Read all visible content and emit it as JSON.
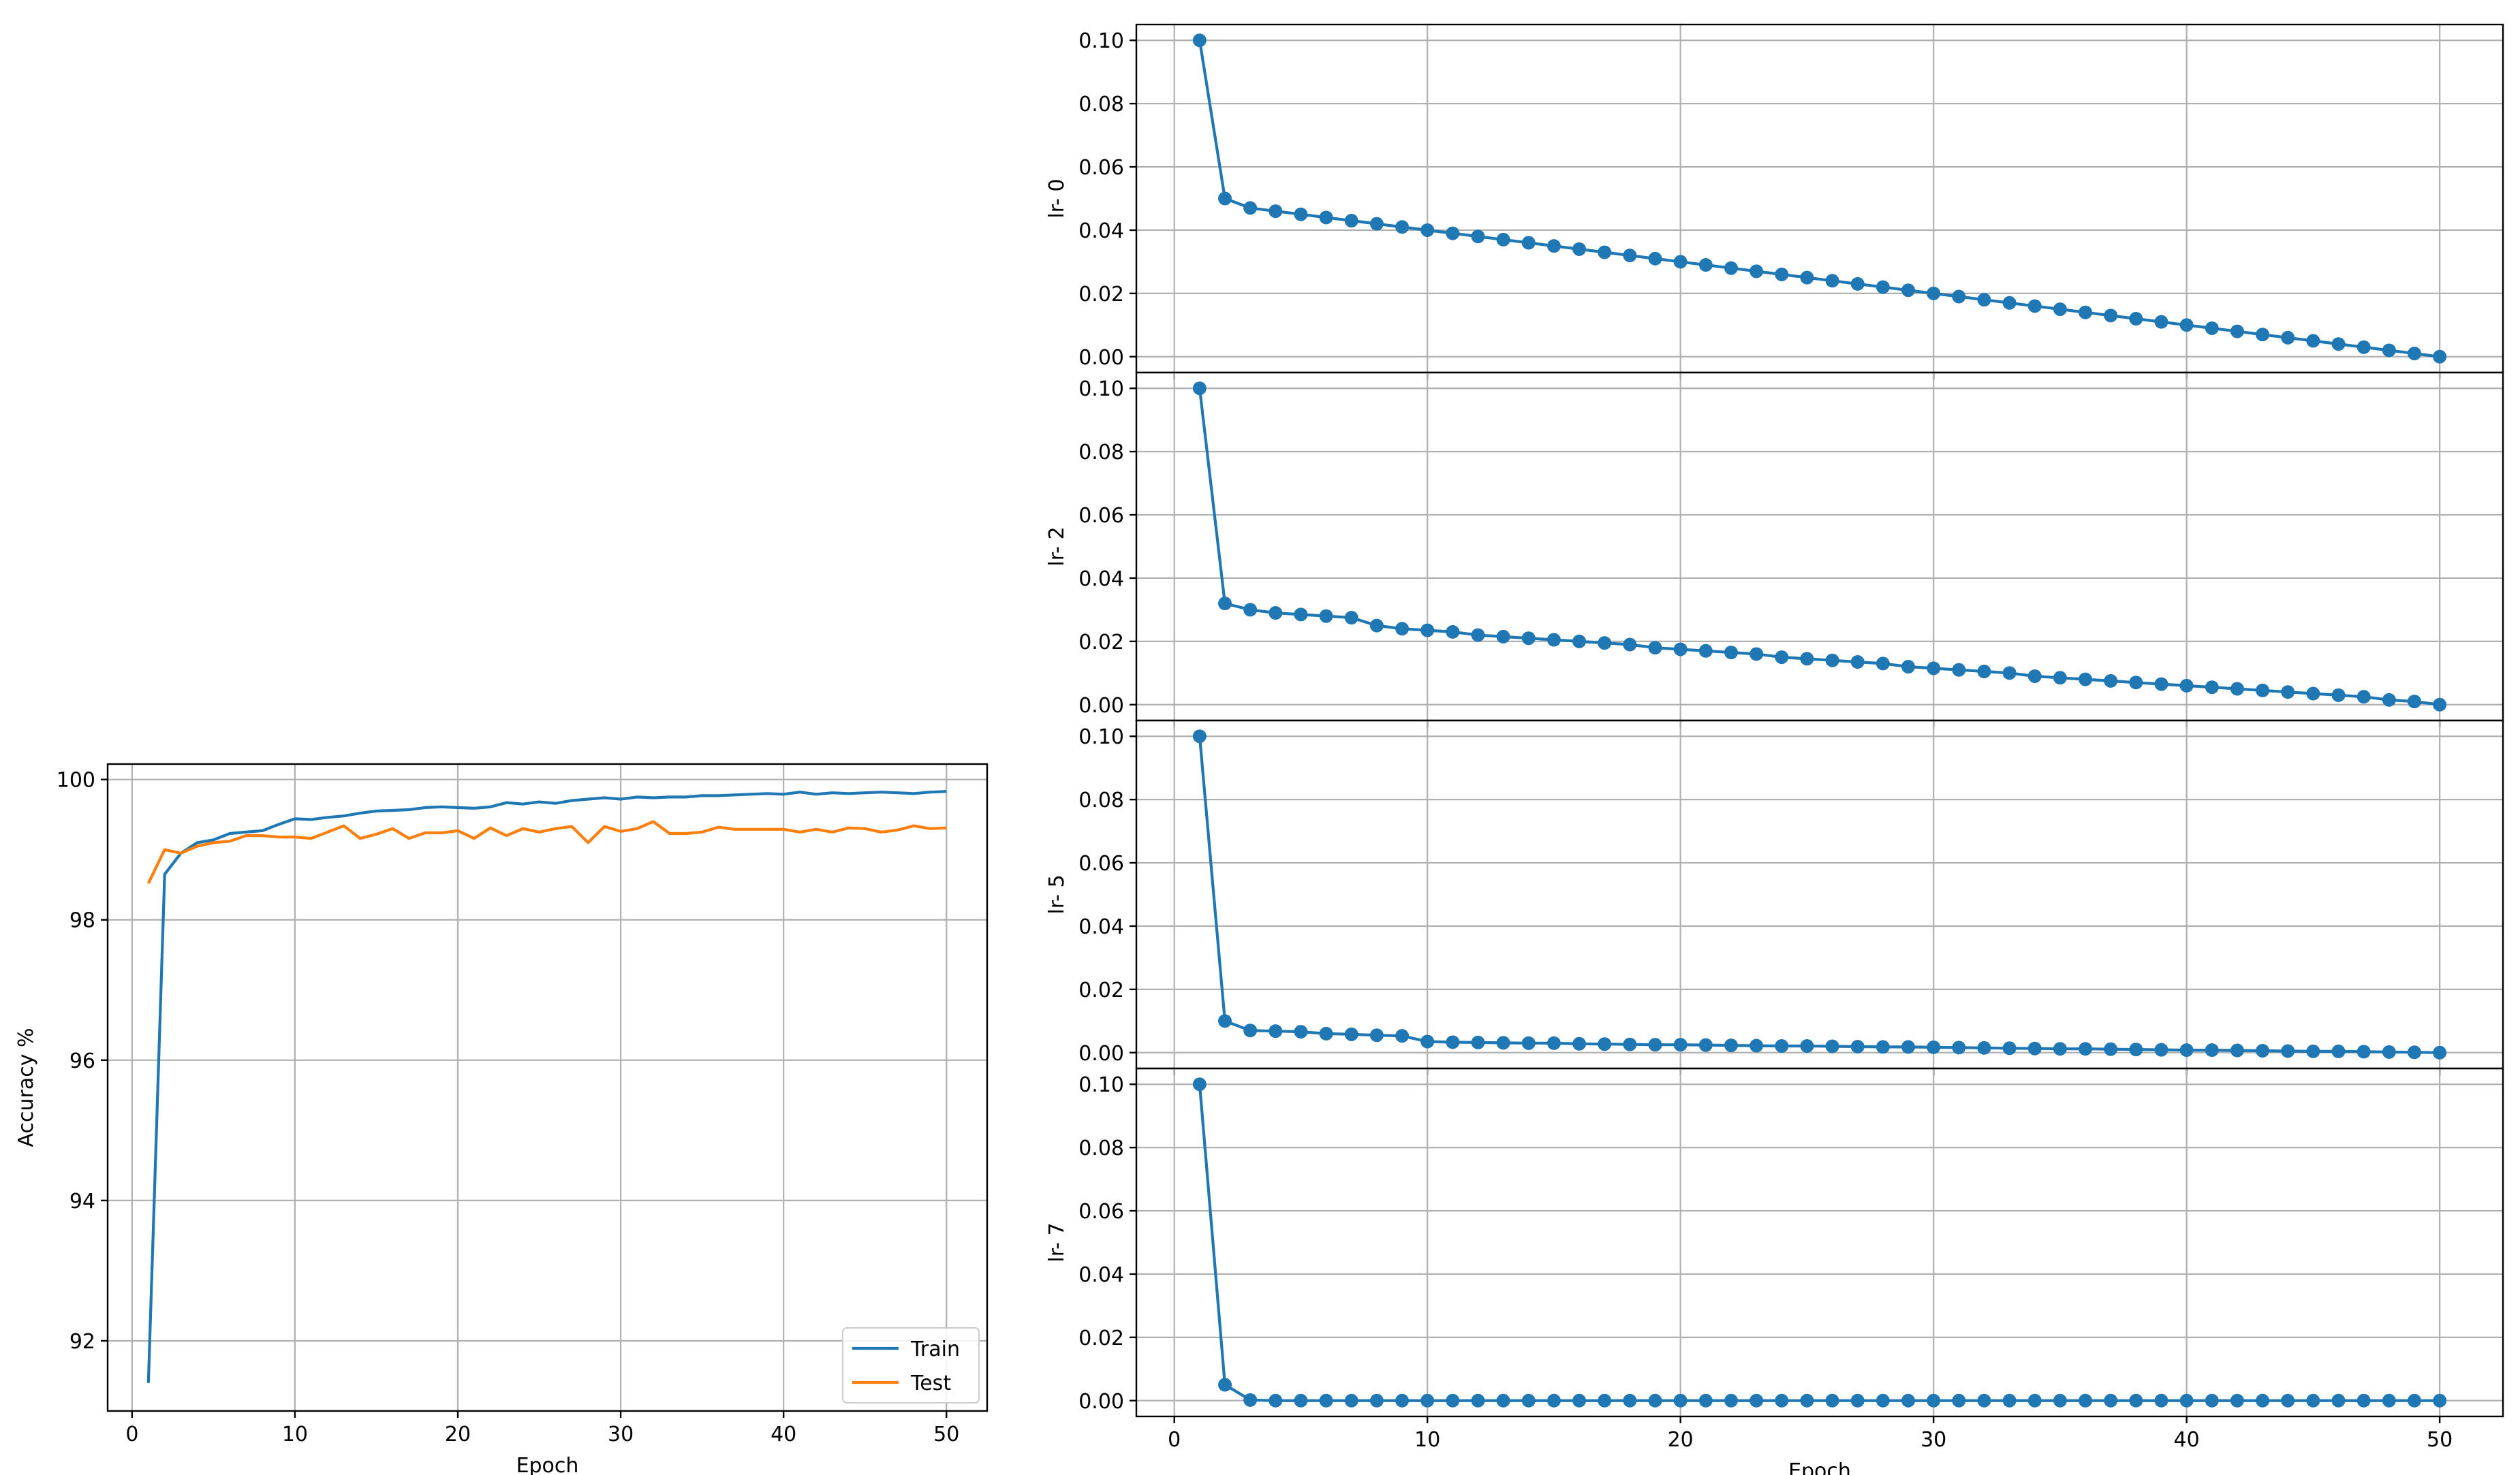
{
  "chart_data": [
    {
      "id": "accuracy",
      "type": "line",
      "title": "",
      "xlabel": "Epoch",
      "ylabel": "Accuracy %",
      "xlim": [
        -1.5,
        52.5
      ],
      "ylim": [
        91.0,
        100.22
      ],
      "xticks": [
        0,
        10,
        20,
        30,
        40,
        50
      ],
      "yticks": [
        92,
        94,
        96,
        98,
        100
      ],
      "grid": true,
      "legend": "lower-right",
      "series": [
        {
          "name": "Train",
          "color": "#1f77b4",
          "x": [
            1,
            2,
            3,
            4,
            5,
            6,
            7,
            8,
            9,
            10,
            11,
            12,
            13,
            14,
            15,
            16,
            17,
            18,
            19,
            20,
            21,
            22,
            23,
            24,
            25,
            26,
            27,
            28,
            29,
            30,
            31,
            32,
            33,
            34,
            35,
            36,
            37,
            38,
            39,
            40,
            41,
            42,
            43,
            44,
            45,
            46,
            47,
            48,
            49,
            50
          ],
          "values": [
            91.4,
            98.65,
            98.95,
            99.1,
            99.14,
            99.23,
            99.25,
            99.27,
            99.36,
            99.44,
            99.43,
            99.46,
            99.48,
            99.52,
            99.55,
            99.56,
            99.57,
            99.6,
            99.61,
            99.6,
            99.59,
            99.61,
            99.67,
            99.65,
            99.68,
            99.66,
            99.7,
            99.72,
            99.74,
            99.72,
            99.75,
            99.74,
            99.75,
            99.75,
            99.77,
            99.77,
            99.78,
            99.79,
            99.8,
            99.79,
            99.82,
            99.79,
            99.81,
            99.8,
            99.81,
            99.82,
            99.81,
            99.8,
            99.82,
            99.83
          ]
        },
        {
          "name": "Test",
          "color": "#ff7f0e",
          "x": [
            1,
            2,
            3,
            4,
            5,
            6,
            7,
            8,
            9,
            10,
            11,
            12,
            13,
            14,
            15,
            16,
            17,
            18,
            19,
            20,
            21,
            22,
            23,
            24,
            25,
            26,
            27,
            28,
            29,
            30,
            31,
            32,
            33,
            34,
            35,
            36,
            37,
            38,
            39,
            40,
            41,
            42,
            43,
            44,
            45,
            46,
            47,
            48,
            49,
            50
          ],
          "values": [
            98.52,
            99.0,
            98.95,
            99.05,
            99.1,
            99.12,
            99.2,
            99.2,
            99.18,
            99.18,
            99.16,
            99.25,
            99.34,
            99.16,
            99.22,
            99.3,
            99.16,
            99.24,
            99.24,
            99.27,
            99.16,
            99.31,
            99.2,
            99.3,
            99.25,
            99.3,
            99.33,
            99.1,
            99.33,
            99.26,
            99.3,
            99.4,
            99.23,
            99.23,
            99.25,
            99.32,
            99.29,
            99.29,
            99.29,
            99.29,
            99.25,
            99.29,
            99.25,
            99.31,
            99.3,
            99.25,
            99.28,
            99.34,
            99.3,
            99.31
          ]
        }
      ]
    },
    {
      "id": "lr0",
      "type": "line",
      "xlabel": "",
      "ylabel": "lr- 0",
      "xlim": [
        -1.5,
        52.5
      ],
      "ylim": [
        -0.005,
        0.105
      ],
      "xticks": [
        0,
        10,
        20,
        30,
        40,
        50
      ],
      "yticks": [
        0.0,
        0.02,
        0.04,
        0.06,
        0.08,
        0.1
      ],
      "grid": true,
      "markers": true,
      "color": "#1f77b4",
      "x": [
        1,
        2,
        3,
        4,
        5,
        6,
        7,
        8,
        9,
        10,
        11,
        12,
        13,
        14,
        15,
        16,
        17,
        18,
        19,
        20,
        21,
        22,
        23,
        24,
        25,
        26,
        27,
        28,
        29,
        30,
        31,
        32,
        33,
        34,
        35,
        36,
        37,
        38,
        39,
        40,
        41,
        42,
        43,
        44,
        45,
        46,
        47,
        48,
        49,
        50
      ],
      "values": [
        0.1,
        0.05,
        0.047,
        0.046,
        0.045,
        0.044,
        0.043,
        0.042,
        0.041,
        0.04,
        0.039,
        0.038,
        0.037,
        0.036,
        0.035,
        0.034,
        0.033,
        0.032,
        0.031,
        0.03,
        0.029,
        0.028,
        0.027,
        0.026,
        0.025,
        0.024,
        0.023,
        0.022,
        0.021,
        0.02,
        0.019,
        0.018,
        0.017,
        0.016,
        0.015,
        0.014,
        0.013,
        0.012,
        0.011,
        0.01,
        0.009,
        0.008,
        0.007,
        0.006,
        0.005,
        0.004,
        0.003,
        0.002,
        0.001,
        0.0
      ]
    },
    {
      "id": "lr2",
      "type": "line",
      "xlabel": "",
      "ylabel": "lr- 2",
      "xlim": [
        -1.5,
        52.5
      ],
      "ylim": [
        -0.005,
        0.105
      ],
      "xticks": [
        0,
        10,
        20,
        30,
        40,
        50
      ],
      "yticks": [
        0.0,
        0.02,
        0.04,
        0.06,
        0.08,
        0.1
      ],
      "grid": true,
      "markers": true,
      "color": "#1f77b4",
      "x": [
        1,
        2,
        3,
        4,
        5,
        6,
        7,
        8,
        9,
        10,
        11,
        12,
        13,
        14,
        15,
        16,
        17,
        18,
        19,
        20,
        21,
        22,
        23,
        24,
        25,
        26,
        27,
        28,
        29,
        30,
        31,
        32,
        33,
        34,
        35,
        36,
        37,
        38,
        39,
        40,
        41,
        42,
        43,
        44,
        45,
        46,
        47,
        48,
        49,
        50
      ],
      "values": [
        0.1,
        0.032,
        0.03,
        0.029,
        0.0285,
        0.028,
        0.0275,
        0.025,
        0.024,
        0.0235,
        0.023,
        0.022,
        0.0215,
        0.021,
        0.0205,
        0.02,
        0.0195,
        0.019,
        0.018,
        0.0175,
        0.017,
        0.0165,
        0.016,
        0.015,
        0.0145,
        0.014,
        0.0135,
        0.013,
        0.012,
        0.0115,
        0.011,
        0.0105,
        0.01,
        0.009,
        0.0085,
        0.008,
        0.0075,
        0.007,
        0.0065,
        0.006,
        0.0055,
        0.005,
        0.0045,
        0.004,
        0.0035,
        0.003,
        0.0025,
        0.0015,
        0.001,
        0.0
      ]
    },
    {
      "id": "lr5",
      "type": "line",
      "xlabel": "",
      "ylabel": "lr- 5",
      "xlim": [
        -1.5,
        52.5
      ],
      "ylim": [
        -0.005,
        0.105
      ],
      "xticks": [
        0,
        10,
        20,
        30,
        40,
        50
      ],
      "yticks": [
        0.0,
        0.02,
        0.04,
        0.06,
        0.08,
        0.1
      ],
      "grid": true,
      "markers": true,
      "color": "#1f77b4",
      "x": [
        1,
        2,
        3,
        4,
        5,
        6,
        7,
        8,
        9,
        10,
        11,
        12,
        13,
        14,
        15,
        16,
        17,
        18,
        19,
        20,
        21,
        22,
        23,
        24,
        25,
        26,
        27,
        28,
        29,
        30,
        31,
        32,
        33,
        34,
        35,
        36,
        37,
        38,
        39,
        40,
        41,
        42,
        43,
        44,
        45,
        46,
        47,
        48,
        49,
        50
      ],
      "values": [
        0.1,
        0.01,
        0.007,
        0.0068,
        0.0066,
        0.006,
        0.0058,
        0.0055,
        0.0053,
        0.0035,
        0.0033,
        0.0032,
        0.0031,
        0.003,
        0.003,
        0.0028,
        0.0027,
        0.0026,
        0.0025,
        0.0025,
        0.0024,
        0.0023,
        0.0022,
        0.0021,
        0.0021,
        0.002,
        0.0019,
        0.0018,
        0.0018,
        0.0017,
        0.0016,
        0.0015,
        0.0014,
        0.0013,
        0.0012,
        0.0012,
        0.0011,
        0.001,
        0.0009,
        0.0008,
        0.0008,
        0.0007,
        0.0006,
        0.0005,
        0.0004,
        0.0004,
        0.0003,
        0.0002,
        0.0001,
        0.0
      ]
    },
    {
      "id": "lr7",
      "type": "line",
      "xlabel": "Epoch",
      "ylabel": "lr- 7",
      "xlim": [
        -1.5,
        52.5
      ],
      "ylim": [
        -0.005,
        0.105
      ],
      "xticks": [
        0,
        10,
        20,
        30,
        40,
        50
      ],
      "yticks": [
        0.0,
        0.02,
        0.04,
        0.06,
        0.08,
        0.1
      ],
      "grid": true,
      "markers": true,
      "color": "#1f77b4",
      "x": [
        1,
        2,
        3,
        4,
        5,
        6,
        7,
        8,
        9,
        10,
        11,
        12,
        13,
        14,
        15,
        16,
        17,
        18,
        19,
        20,
        21,
        22,
        23,
        24,
        25,
        26,
        27,
        28,
        29,
        30,
        31,
        32,
        33,
        34,
        35,
        36,
        37,
        38,
        39,
        40,
        41,
        42,
        43,
        44,
        45,
        46,
        47,
        48,
        49,
        50
      ],
      "values": [
        0.1,
        0.005,
        0.0002,
        0,
        0,
        0,
        0,
        0,
        0,
        0,
        0,
        0,
        0,
        0,
        0,
        0,
        0,
        0,
        0,
        0,
        0,
        0,
        0,
        0,
        0,
        0,
        0,
        0,
        0,
        0,
        0,
        0,
        0,
        0,
        0,
        0,
        0,
        0,
        0,
        0,
        0,
        0,
        0,
        0,
        0,
        0,
        0,
        0,
        0,
        0
      ]
    }
  ]
}
